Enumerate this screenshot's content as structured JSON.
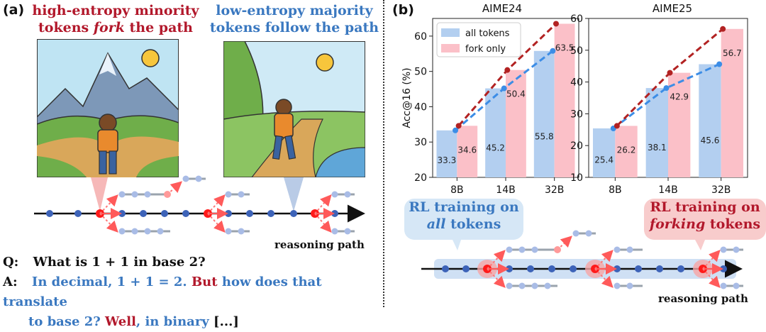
{
  "panel_a": {
    "label": "(a)",
    "left_heading_line1": "high-entropy minority",
    "left_heading_line2_pre": "tokens ",
    "left_heading_line2_em": "fork",
    "left_heading_line2_post": " the path",
    "right_heading_line1": "low-entropy majority",
    "right_heading_line2": "tokens follow the path",
    "reasoning_path": "reasoning path",
    "q_label": "Q:",
    "question": "What is 1 + 1 in base 2?",
    "a_label": "A:",
    "answer_part1": "In decimal, 1 + 1 = 2.",
    "answer_but": "But",
    "answer_part2": "how does that translate",
    "answer_part3": "to base 2?",
    "answer_well": "Well",
    "answer_part4": ", in binary",
    "answer_ellipsis": "[...]"
  },
  "panel_b": {
    "label": "(b)",
    "box_all_line1": "RL training on",
    "box_all_line2": "all",
    "box_all_line3": " tokens",
    "box_fork_line1": "RL training on",
    "box_fork_line2": "forking",
    "box_fork_line3": " tokens",
    "reasoning_path": "reasoning path"
  },
  "chart_data": [
    {
      "type": "bar",
      "title": "AIME24",
      "ylabel": "Acc@16 (%)",
      "categories": [
        "8B",
        "14B",
        "32B"
      ],
      "ylim": [
        20,
        65
      ],
      "yticks": [
        20,
        30,
        40,
        50,
        60
      ],
      "series": [
        {
          "name": "all tokens",
          "values": [
            33.3,
            45.2,
            55.8
          ],
          "color": "#b3cff0",
          "line_color": "#3c8de6"
        },
        {
          "name": "fork only",
          "values": [
            34.6,
            50.4,
            63.5
          ],
          "color": "#fbc0c8",
          "line_color": "#b22222"
        }
      ],
      "legend": "top-left",
      "grid": false
    },
    {
      "type": "bar",
      "title": "AIME25",
      "ylabel": "",
      "categories": [
        "8B",
        "14B",
        "32B"
      ],
      "ylim": [
        10,
        60
      ],
      "yticks": [
        10,
        20,
        30,
        40,
        50,
        60
      ],
      "series": [
        {
          "name": "all tokens",
          "values": [
            25.4,
            38.1,
            45.6
          ],
          "color": "#b3cff0",
          "line_color": "#3c8de6"
        },
        {
          "name": "fork only",
          "values": [
            26.2,
            42.9,
            56.7
          ],
          "color": "#fbc0c8",
          "line_color": "#b22222"
        }
      ],
      "grid": false
    }
  ]
}
